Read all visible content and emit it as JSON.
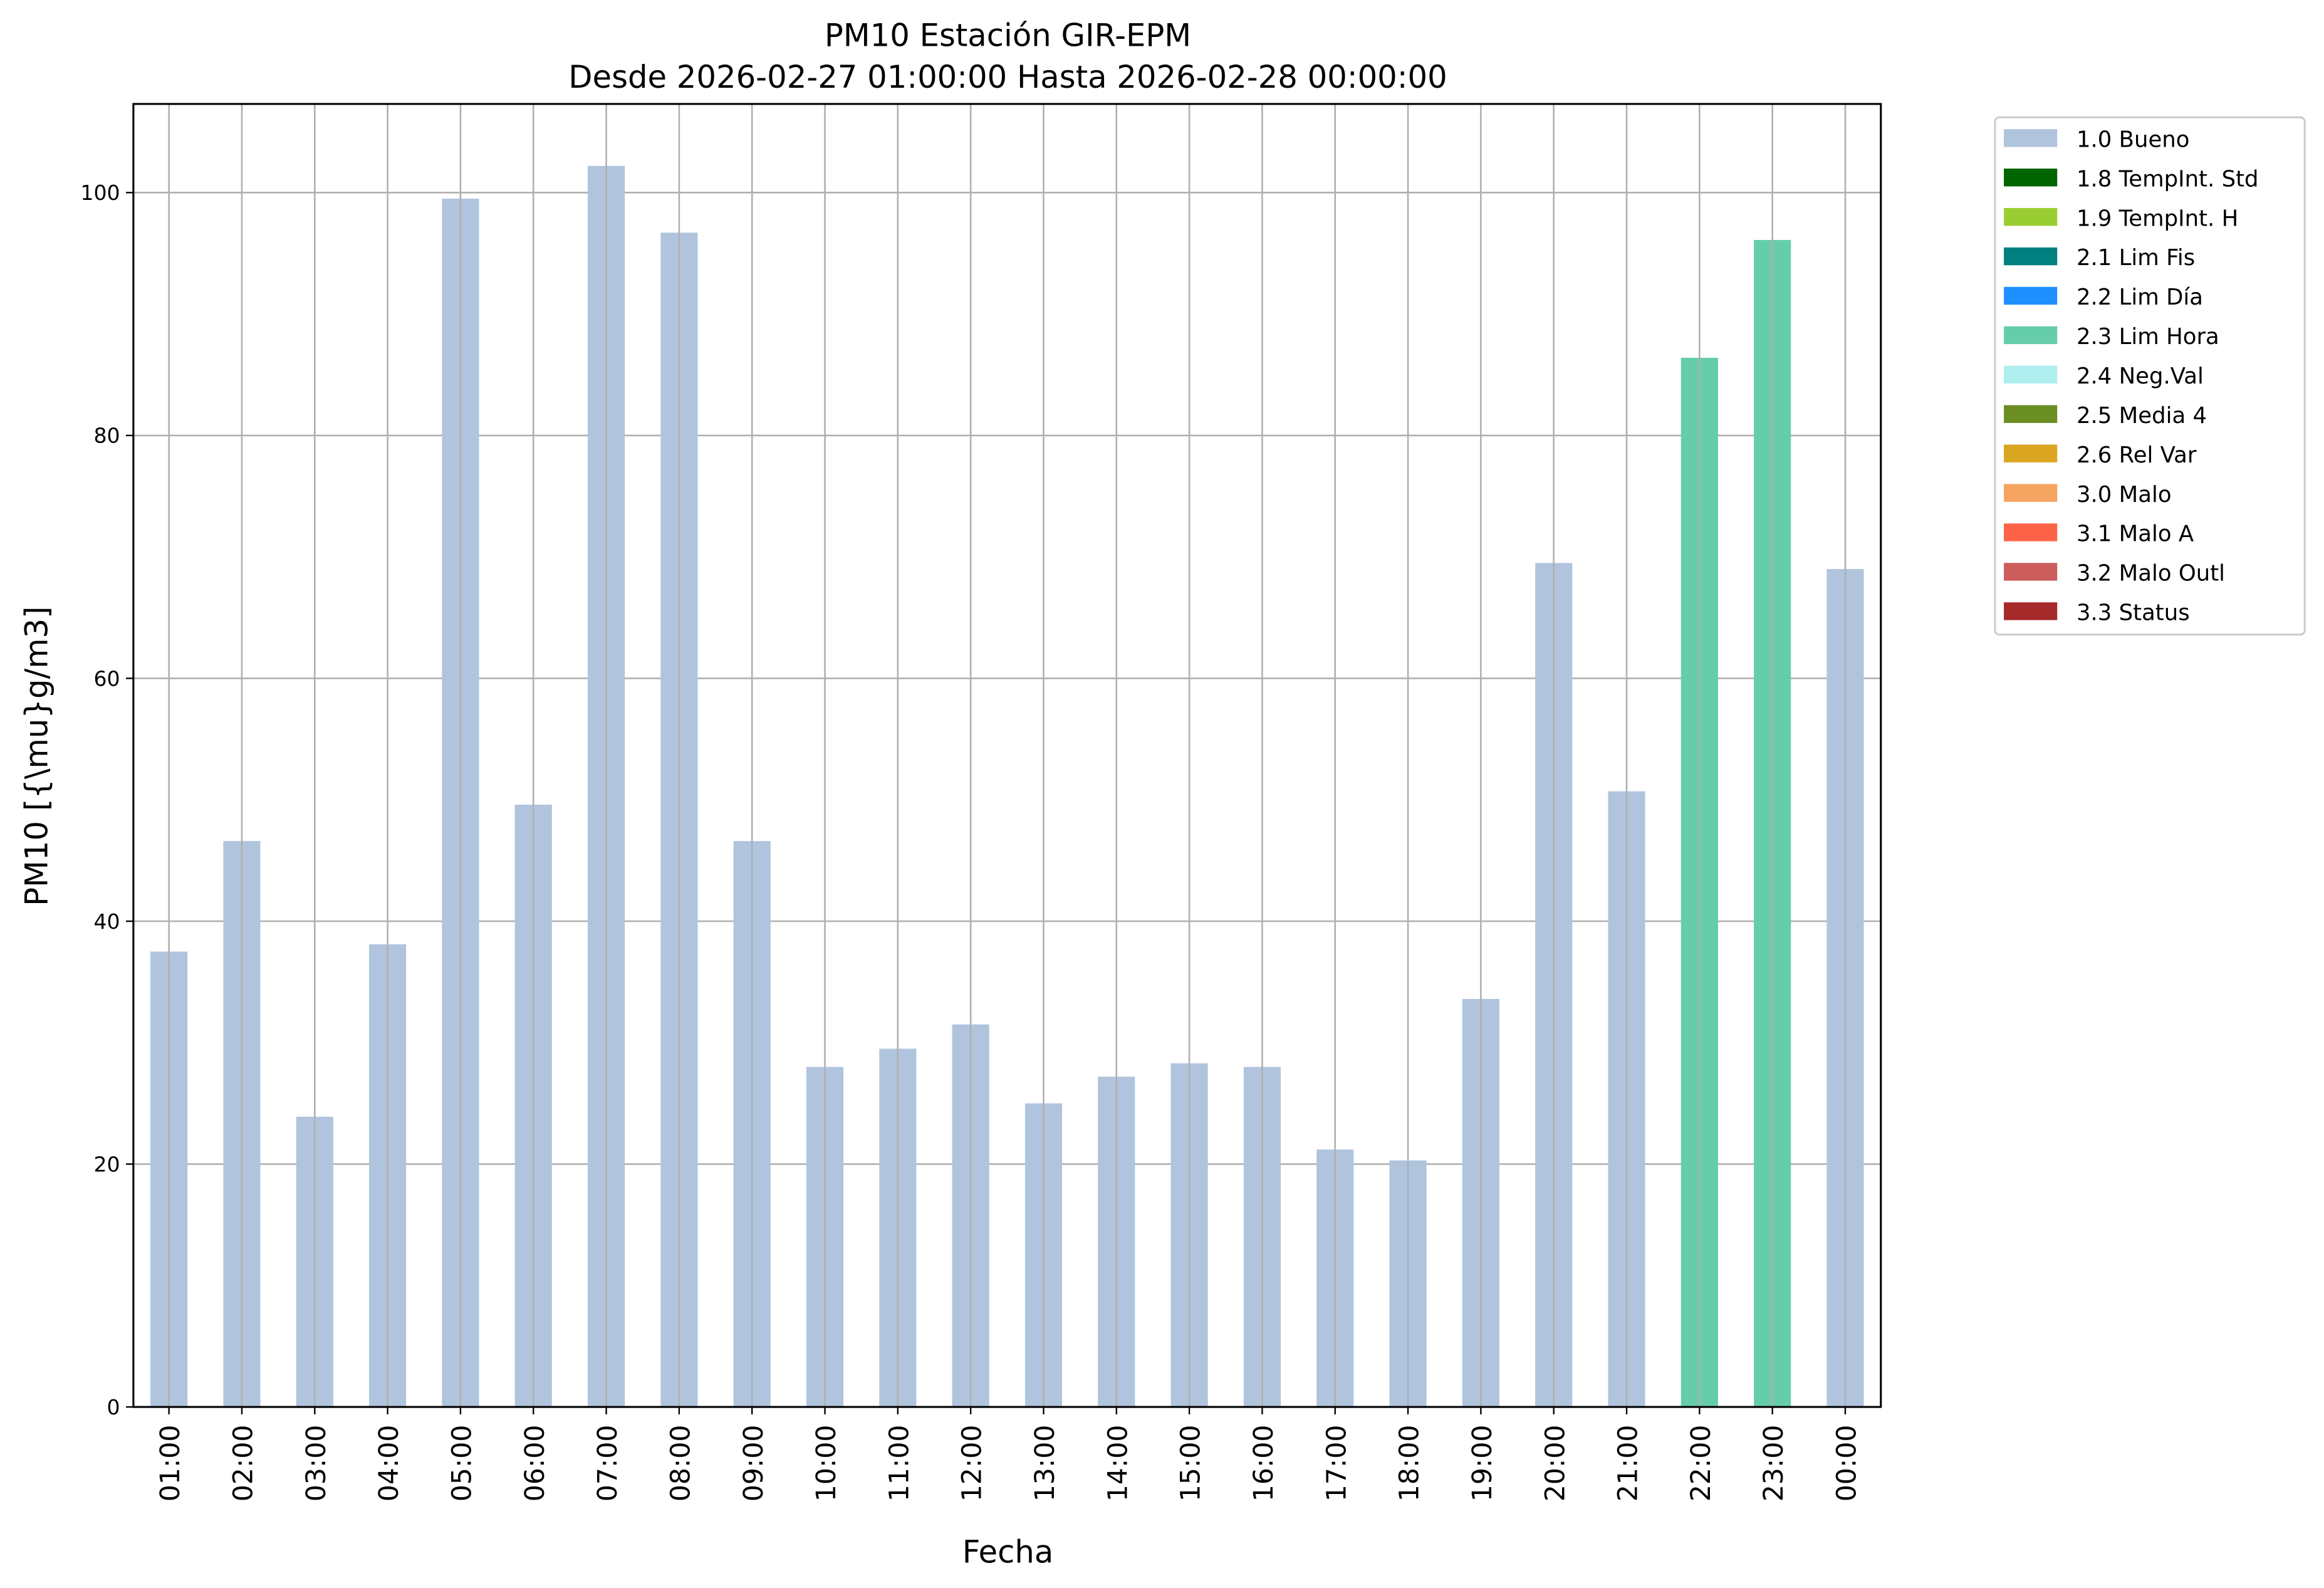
{
  "chart_data": {
    "type": "bar",
    "title": "PM10 Estación GIR-EPM",
    "subtitle": "Desde 2026-02-27 01:00:00 Hasta 2026-02-28 00:00:00",
    "xlabel": "Fecha",
    "ylabel": "PM10 [{\\mu}g/m3]",
    "ylim": [
      0,
      107.3
    ],
    "yticks": [
      0,
      20,
      40,
      60,
      80,
      100
    ],
    "grid": true,
    "legend_placement": "outside-top-right",
    "categories": [
      "01:00",
      "02:00",
      "03:00",
      "04:00",
      "05:00",
      "06:00",
      "07:00",
      "08:00",
      "09:00",
      "10:00",
      "11:00",
      "12:00",
      "13:00",
      "14:00",
      "15:00",
      "16:00",
      "17:00",
      "18:00",
      "19:00",
      "20:00",
      "21:00",
      "22:00",
      "23:00",
      "00:00"
    ],
    "values": [
      37.5,
      46.6,
      23.9,
      38.1,
      99.5,
      49.6,
      102.2,
      96.7,
      46.6,
      28.0,
      29.5,
      31.5,
      25.0,
      27.2,
      28.3,
      28.0,
      21.2,
      20.3,
      33.6,
      69.5,
      50.7,
      86.4,
      96.1,
      69.0
    ],
    "flags": [
      "1.0 Bueno",
      "1.0 Bueno",
      "1.0 Bueno",
      "1.0 Bueno",
      "1.0 Bueno",
      "1.0 Bueno",
      "1.0 Bueno",
      "1.0 Bueno",
      "1.0 Bueno",
      "1.0 Bueno",
      "1.0 Bueno",
      "1.0 Bueno",
      "1.0 Bueno",
      "1.0 Bueno",
      "1.0 Bueno",
      "1.0 Bueno",
      "1.0 Bueno",
      "1.0 Bueno",
      "1.0 Bueno",
      "1.0 Bueno",
      "1.0 Bueno",
      "2.3 Lim Hora",
      "2.3 Lim Hora",
      "1.0 Bueno"
    ],
    "legend": [
      {
        "name": "1.0 Bueno",
        "color": "#b0c4de"
      },
      {
        "name": "1.8 TempInt. Std",
        "color": "#006400"
      },
      {
        "name": "1.9 TempInt. H",
        "color": "#9acd32"
      },
      {
        "name": "2.1 Lim Fis",
        "color": "#008080"
      },
      {
        "name": "2.2 Lim Día",
        "color": "#1e90ff"
      },
      {
        "name": "2.3 Lim Hora",
        "color": "#66cdaa"
      },
      {
        "name": "2.4 Neg.Val",
        "color": "#afeeee"
      },
      {
        "name": "2.5 Media 4",
        "color": "#6b8e23"
      },
      {
        "name": "2.6 Rel Var",
        "color": "#daa520"
      },
      {
        "name": "3.0 Malo",
        "color": "#f4a460"
      },
      {
        "name": "3.1 Malo A",
        "color": "#ff6347"
      },
      {
        "name": "3.2 Malo Outl",
        "color": "#cd5c5c"
      },
      {
        "name": "3.3 Status",
        "color": "#a52a2a"
      }
    ]
  }
}
